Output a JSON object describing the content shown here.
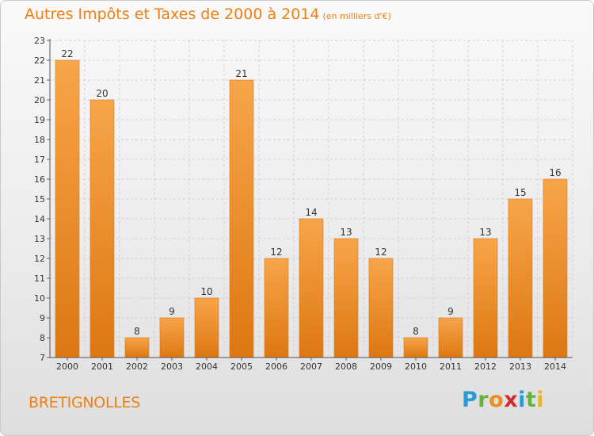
{
  "title": {
    "main": "Autres Impôts et Taxes de 2000 à 2014",
    "unit": "(en milliers d'€)"
  },
  "location": "BRETIGNOLLES",
  "logo": {
    "letters": [
      "P",
      "r",
      "o",
      "x",
      "i",
      "t",
      "i"
    ],
    "colors": [
      "#2a9ad6",
      "#63b33c",
      "#f28a1c",
      "#d7282f",
      "#2a9ad6",
      "#63b33c",
      "#f0b21b"
    ]
  },
  "chart_data": {
    "type": "bar",
    "title": "Autres Impôts et Taxes de 2000 à 2014",
    "ylabel": "",
    "xlabel": "",
    "categories": [
      "2000",
      "2001",
      "2002",
      "2003",
      "2004",
      "2005",
      "2006",
      "2007",
      "2008",
      "2009",
      "2010",
      "2011",
      "2012",
      "2013",
      "2014"
    ],
    "values": [
      22,
      20,
      8,
      9,
      10,
      21,
      12,
      14,
      13,
      12,
      8,
      9,
      13,
      15,
      16
    ],
    "ylim": [
      7,
      23
    ],
    "yticks": [
      7,
      8,
      9,
      10,
      11,
      12,
      13,
      14,
      15,
      16,
      17,
      18,
      19,
      20,
      21,
      22,
      23
    ],
    "grid": true,
    "bar_color": "#f2972f"
  }
}
